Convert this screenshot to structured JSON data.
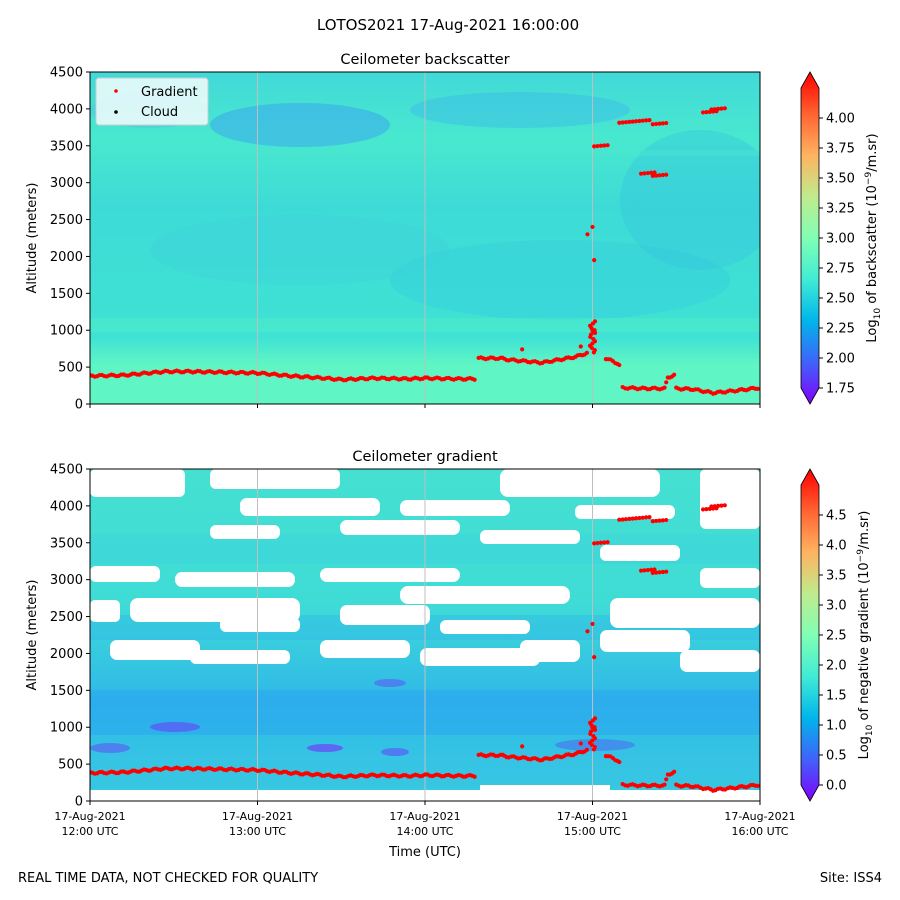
{
  "suptitle": "LOTOS2021 17-Aug-2021 16:00:00",
  "footer_left": "REAL TIME DATA, NOT CHECKED FOR QUALITY",
  "footer_right": "Site: ISS4",
  "chart_data": [
    {
      "type": "heatmap",
      "title": "Ceilometer backscatter",
      "ylabel": "Altitude (meters)",
      "ylim": [
        0,
        4500
      ],
      "yticks": [
        0,
        500,
        1000,
        1500,
        2000,
        2500,
        3000,
        3500,
        4000,
        4500
      ],
      "xticks_hours": [
        12,
        13,
        14,
        15,
        16
      ],
      "colorbar": {
        "label_prefix": "Log",
        "label_sub": "10",
        "label_main": " of backscatter (10",
        "label_sup": "−9",
        "label_end": "/m.sr)",
        "range": [
          1.75,
          4.25
        ],
        "ticks": [
          "1.75",
          "2.00",
          "2.25",
          "2.50",
          "2.75",
          "3.00",
          "3.25",
          "3.50",
          "3.75",
          "4.00"
        ]
      },
      "legend": {
        "position": "top-left",
        "entries": [
          {
            "label": "Gradient",
            "color": "#ff0000"
          },
          {
            "label": "Cloud",
            "color": "#000000"
          }
        ]
      }
    },
    {
      "type": "heatmap",
      "title": "Ceilometer gradient",
      "ylabel": "Altitude (meters)",
      "xlabel": "Time (UTC)",
      "ylim": [
        0,
        4500
      ],
      "yticks": [
        0,
        500,
        1000,
        1500,
        2000,
        2500,
        3000,
        3500,
        4000,
        4500
      ],
      "xtick_labels": [
        [
          "17-Aug-2021",
          "12:00 UTC"
        ],
        [
          "17-Aug-2021",
          "13:00 UTC"
        ],
        [
          "17-Aug-2021",
          "14:00 UTC"
        ],
        [
          "17-Aug-2021",
          "15:00 UTC"
        ],
        [
          "17-Aug-2021",
          "16:00 UTC"
        ]
      ],
      "colorbar": {
        "label_prefix": "Log",
        "label_sub": "10",
        "label_main": " of negative gradient (10",
        "label_sup": "−9",
        "label_end": "/m.sr)",
        "range": [
          0,
          5
        ],
        "ticks": [
          "0.0",
          "0.5",
          "1.0",
          "1.5",
          "2.0",
          "2.5",
          "3.0",
          "3.5",
          "4.0",
          "4.5"
        ]
      }
    }
  ],
  "gradient_points": [
    [
      12.0,
      380
    ],
    [
      12.2,
      390
    ],
    [
      12.35,
      420
    ],
    [
      12.45,
      440
    ],
    [
      12.6,
      440
    ],
    [
      12.8,
      430
    ],
    [
      13.0,
      420
    ],
    [
      13.2,
      380
    ],
    [
      13.4,
      350
    ],
    [
      13.5,
      330
    ],
    [
      13.7,
      350
    ],
    [
      13.9,
      340
    ],
    [
      14.0,
      350
    ],
    [
      14.2,
      340
    ],
    [
      14.31,
      340
    ],
    [
      14.32,
      620
    ],
    [
      14.45,
      620
    ],
    [
      14.5,
      600
    ],
    [
      14.6,
      580
    ],
    [
      14.7,
      560
    ],
    [
      14.8,
      600
    ],
    [
      14.9,
      640
    ],
    [
      14.98,
      700
    ],
    [
      15.0,
      1000
    ],
    [
      15.03,
      950
    ],
    [
      15.08,
      620
    ],
    [
      15.15,
      550
    ],
    [
      15.17,
      500
    ],
    [
      15.18,
      220
    ],
    [
      15.3,
      210
    ],
    [
      15.43,
      210
    ],
    [
      15.45,
      360
    ],
    [
      15.5,
      400
    ],
    [
      15.5,
      210
    ],
    [
      15.6,
      200
    ],
    [
      15.72,
      150
    ],
    [
      15.85,
      180
    ],
    [
      16.0,
      220
    ]
  ],
  "gradient_extra_points": [
    [
      15.0,
      2400
    ],
    [
      14.97,
      2300
    ],
    [
      15.01,
      1950
    ],
    [
      14.93,
      780
    ],
    [
      14.58,
      740
    ],
    [
      15.05,
      3500
    ],
    [
      15.2,
      3820
    ],
    [
      15.3,
      3840
    ],
    [
      15.4,
      3800
    ],
    [
      15.33,
      3130
    ],
    [
      15.4,
      3100
    ],
    [
      15.7,
      3960
    ],
    [
      15.75,
      4000
    ]
  ]
}
